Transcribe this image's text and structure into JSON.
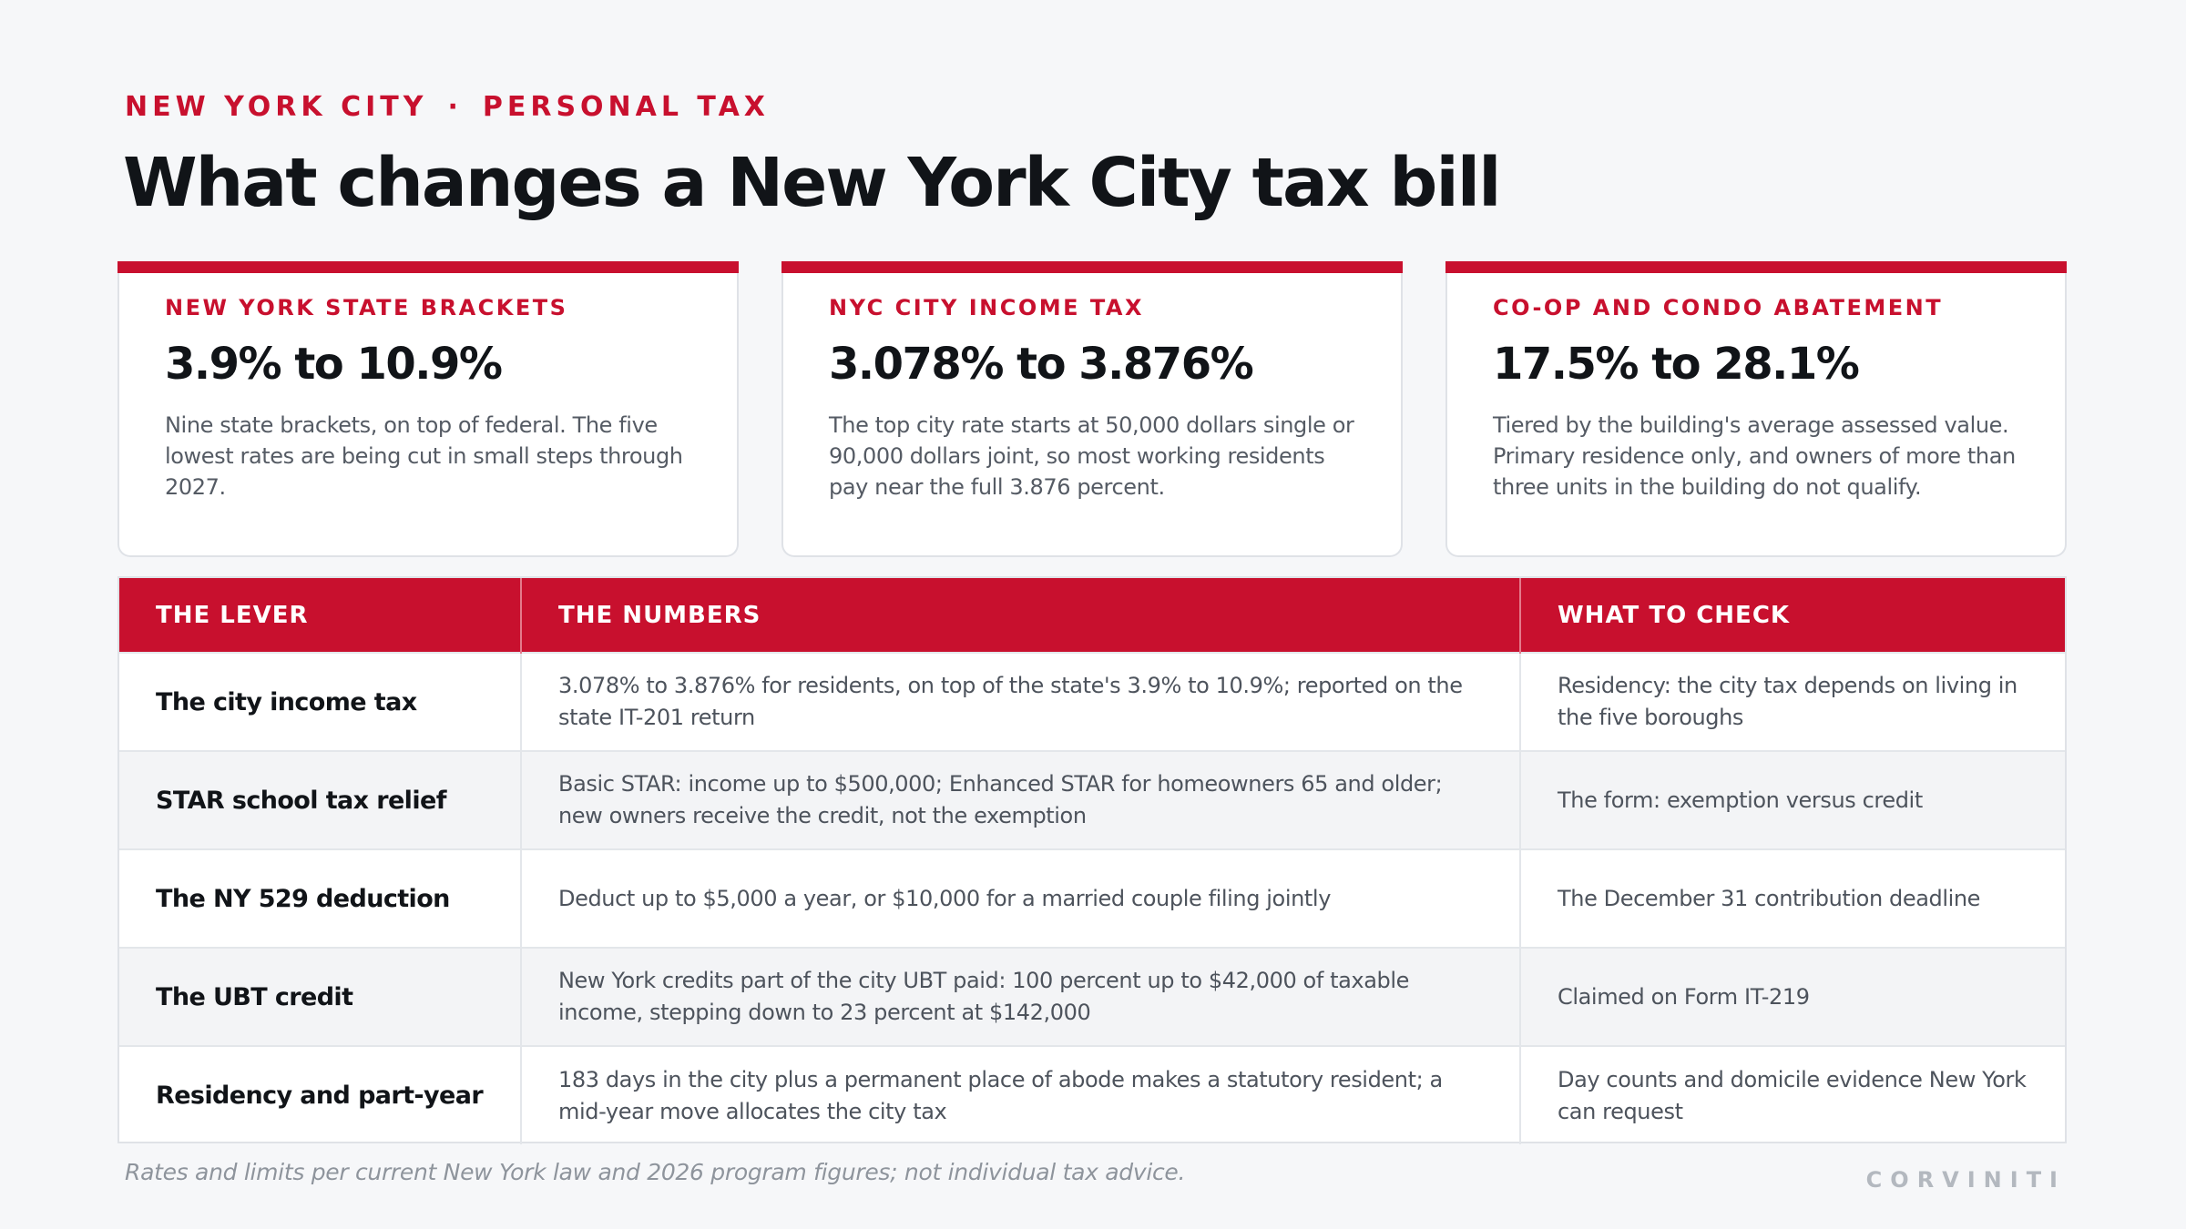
{
  "header": {
    "eyebrow_left": "NEW YORK CITY",
    "eyebrow_separator": "·",
    "eyebrow_right": "PERSONAL TAX",
    "title": "What changes a New York City tax bill"
  },
  "cards": [
    {
      "label": "NEW YORK STATE BRACKETS",
      "value": "3.9% to 10.9%",
      "description": "Nine state brackets, on top of federal. The five lowest rates are being cut in small steps through 2027."
    },
    {
      "label": "NYC CITY INCOME TAX",
      "value": "3.078% to 3.876%",
      "description": "The top city rate starts at 50,000 dollars single or 90,000 dollars joint, so most working residents pay near the full 3.876 percent."
    },
    {
      "label": "CO-OP AND CONDO ABATEMENT",
      "value": "17.5% to 28.1%",
      "description": "Tiered by the building's average assessed value. Primary residence only, and owners of more than three units in the building do not qualify."
    }
  ],
  "table": {
    "headers": [
      "THE LEVER",
      "THE NUMBERS",
      "WHAT TO CHECK"
    ],
    "rows": [
      {
        "lever": "The city income tax",
        "numbers": "3.078% to 3.876% for residents, on top of the state's 3.9% to 10.9%; reported on the state IT-201 return",
        "check": "Residency: the city tax depends on living in the five boroughs"
      },
      {
        "lever": "STAR school tax relief",
        "numbers": "Basic STAR: income up to $500,000; Enhanced STAR for homeowners 65 and older; new owners receive the credit, not the exemption",
        "check": "The form: exemption versus credit"
      },
      {
        "lever": "The NY 529 deduction",
        "numbers": "Deduct up to $5,000 a year, or $10,000 for a married couple filing jointly",
        "check": "The December 31 contribution deadline"
      },
      {
        "lever": "The UBT credit",
        "numbers": "New York credits part of the city UBT paid: 100 percent up to $42,000 of taxable income, stepping down to 23 percent at $142,000",
        "check": "Claimed on Form IT-219"
      },
      {
        "lever": "Residency and part-year",
        "numbers": "183 days in the city plus a permanent place of abode makes a statutory resident; a mid-year move allocates the city tax",
        "check": "Day counts and domicile evidence New York can request"
      }
    ]
  },
  "footer": {
    "footnote": "Rates and limits per current New York law and 2026 program figures; not individual tax advice.",
    "brand": "CORVINITI"
  },
  "colors": {
    "accent": "#c8102e",
    "background": "#f6f7f9",
    "text": "#111418",
    "muted": "#555b64"
  }
}
